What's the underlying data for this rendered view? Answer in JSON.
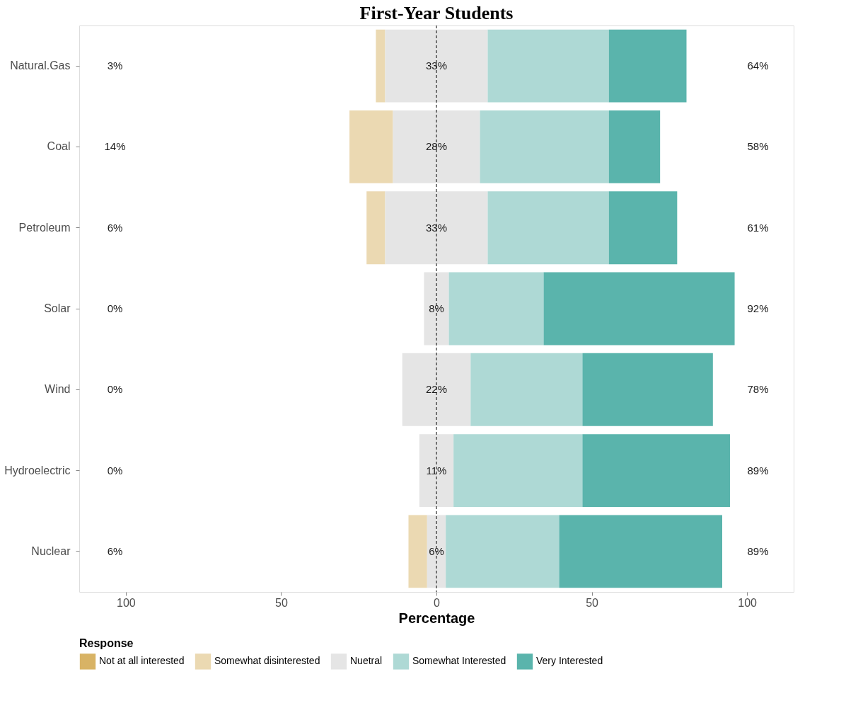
{
  "chart_data": {
    "type": "bar",
    "orientation": "horizontal",
    "title": "First-Year Students",
    "xlabel": "Percentage",
    "legend_title": "Response",
    "legend": "bottom",
    "grid": false,
    "categories": [
      "Natural.Gas",
      "Coal",
      "Petroleum",
      "Solar",
      "Wind",
      "Hydroelectric",
      "Nuclear"
    ],
    "xlim": [
      -115,
      115
    ],
    "xticks": [
      {
        "value": -100,
        "label": "100"
      },
      {
        "value": -50,
        "label": "50"
      },
      0,
      50,
      100
    ],
    "ref_lines": [
      {
        "axis": "x",
        "value": 0,
        "color": "#000000",
        "line_style": "dashed"
      }
    ],
    "series": [
      {
        "name": "Not at all interested",
        "color": "#d8b365",
        "values": [
          null,
          null,
          null,
          null,
          null,
          null,
          null
        ]
      },
      {
        "name": "Somewhat disinterested",
        "color": "#ebd9b2",
        "base": [
          -19.5,
          -28,
          -22.5,
          null,
          null,
          null,
          -9
        ],
        "values": [
          3,
          14,
          6,
          null,
          null,
          null,
          6
        ]
      },
      {
        "name": "Nuetral",
        "color": "#e5e5e5",
        "base": [
          -16.5,
          -14,
          -16.5,
          -4,
          -11,
          -5.5,
          -3
        ],
        "values": [
          33,
          28,
          33,
          8,
          22,
          11,
          6
        ],
        "value_labels": [
          "33%",
          "28%",
          "33%",
          "8%",
          "22%",
          "11%",
          "6%"
        ]
      },
      {
        "name": "Somewhat Interested",
        "color": "#aed9d5",
        "base": [
          16.5,
          14,
          16.5,
          4,
          11,
          5.5,
          3
        ],
        "values": [
          39,
          41.5,
          39,
          30.5,
          36,
          41.5,
          36.5
        ]
      },
      {
        "name": "Very Interested",
        "color": "#5ab4ac",
        "base": [
          55.5,
          55.5,
          55.5,
          34.5,
          47,
          47,
          39.5
        ],
        "values": [
          25,
          16.5,
          22,
          61.5,
          42,
          47.5,
          52.5
        ]
      }
    ],
    "annotations": [
      "3%",
      "14%",
      "6%",
      "0%",
      "0%",
      "0%",
      "6%",
      "64%",
      "58%",
      "61%",
      "92%",
      "78%",
      "89%",
      "89%"
    ]
  }
}
